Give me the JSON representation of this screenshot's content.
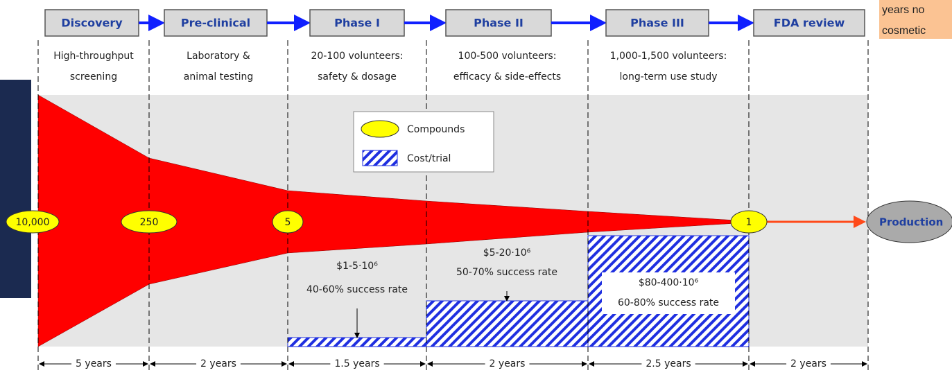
{
  "phases": [
    {
      "name": "Discovery",
      "description": [
        "High-throughput",
        "screening"
      ],
      "duration": "5 years"
    },
    {
      "name": "Pre-clinical",
      "description": [
        "Laboratory &",
        "animal testing"
      ],
      "duration": "2 years"
    },
    {
      "name": "Phase I",
      "description": [
        "20-100 volunteers:",
        "safety & dosage"
      ],
      "duration": "1.5 years"
    },
    {
      "name": "Phase II",
      "description": [
        "100-500 volunteers:",
        "efficacy & side-effects"
      ],
      "duration": "2 years"
    },
    {
      "name": "Phase III",
      "description": [
        "1,000-1,500 volunteers:",
        "long-term use study"
      ],
      "duration": "2.5 years"
    },
    {
      "name": "FDA review",
      "description": [],
      "duration": "2 years"
    }
  ],
  "compounds": [
    "10,000",
    "250",
    "5",
    "1"
  ],
  "production": "Production",
  "costs": [
    {
      "cost": "$1-5·10⁶",
      "success": "40-60% success rate"
    },
    {
      "cost": "$5-20·10⁶",
      "success": "50-70% success rate"
    },
    {
      "cost": "$80-400·10⁶",
      "success": "60-80% success rate"
    }
  ],
  "legend": {
    "compounds": "Compounds",
    "cost": "Cost/trial"
  },
  "note": [
    "years no",
    "cosmetic"
  ]
}
